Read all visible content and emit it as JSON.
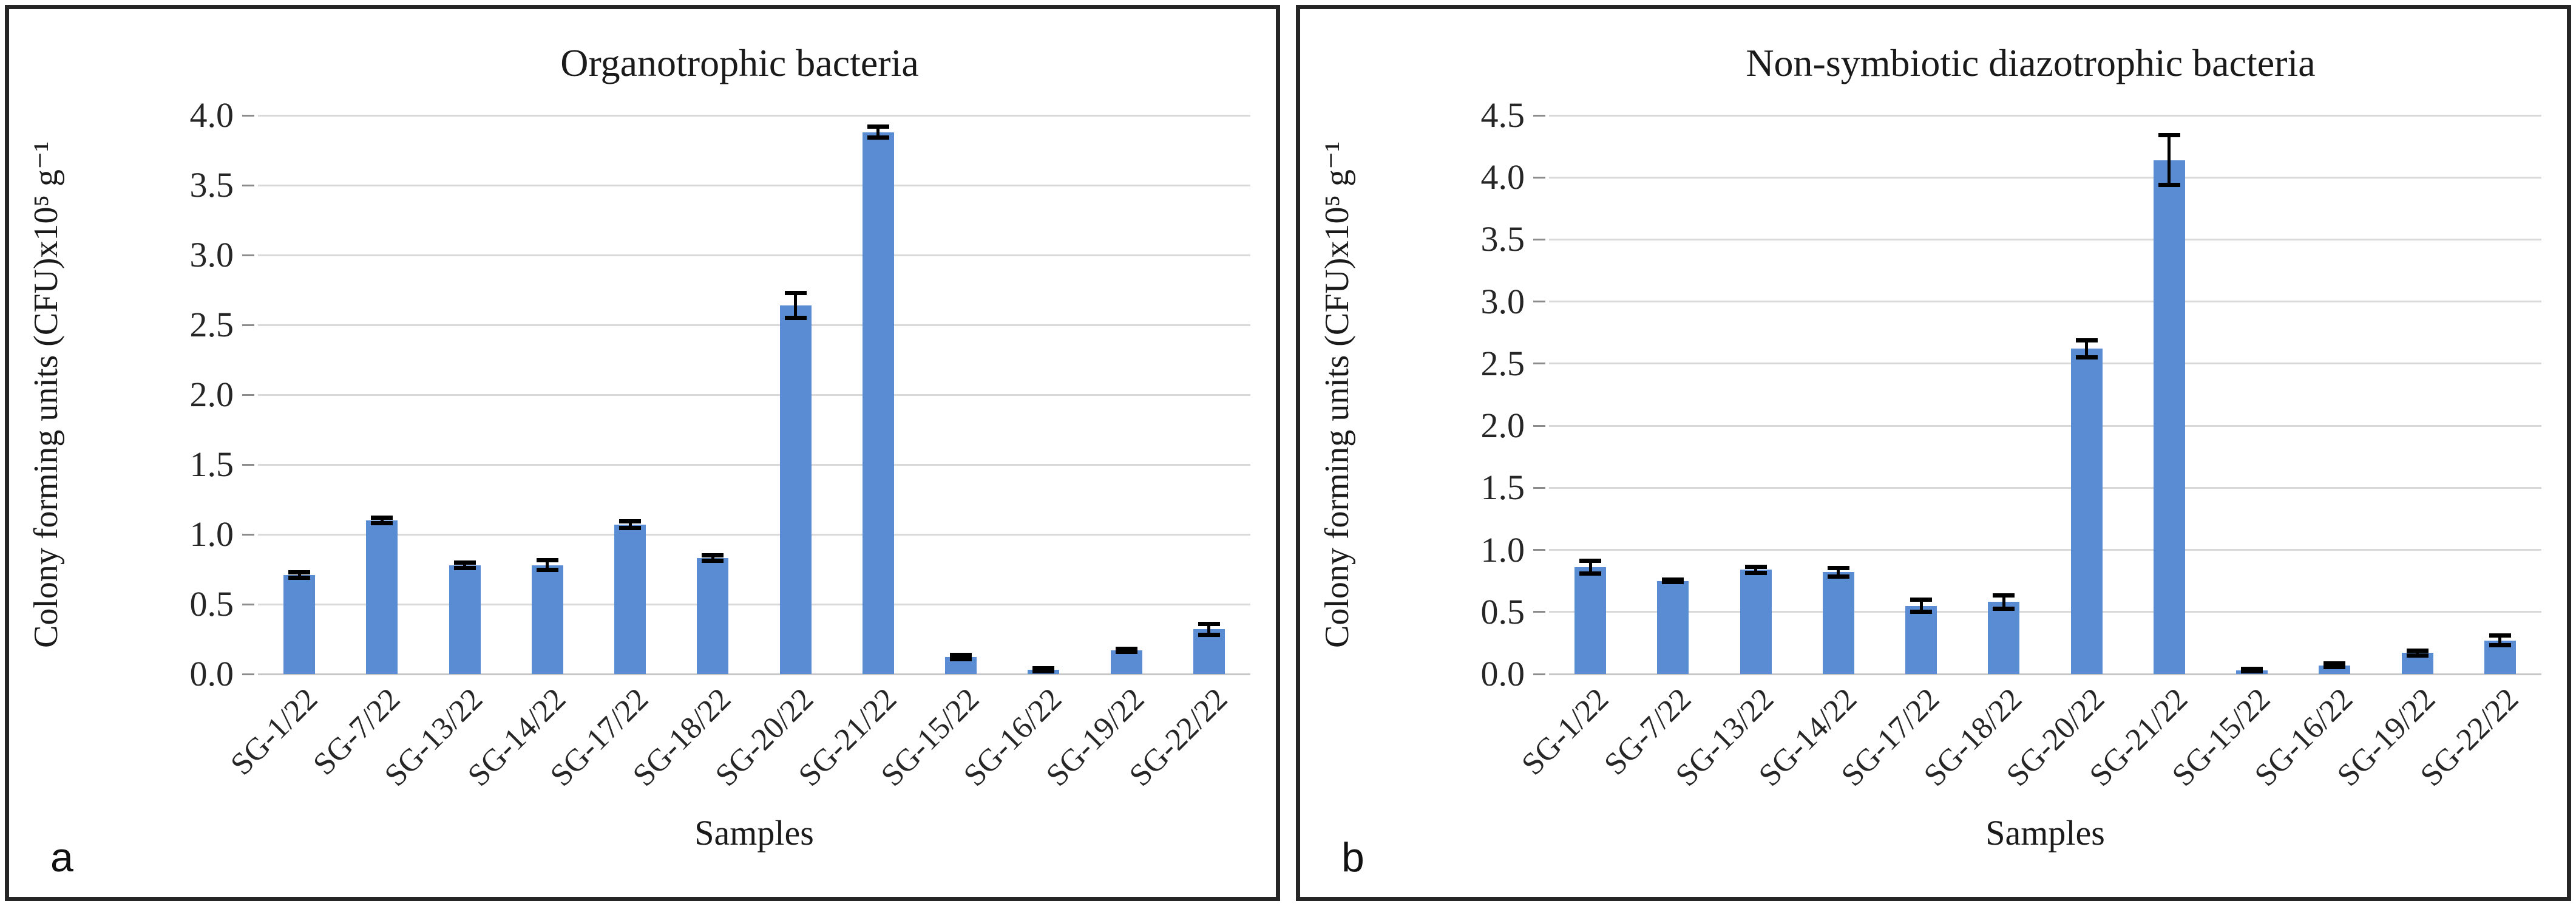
{
  "figure": {
    "description": "Two-panel bar chart figure with error bars",
    "background": "#ffffff",
    "border_color": "#262626"
  },
  "chart_data": [
    {
      "type": "bar",
      "panel_label": "a",
      "title": "Organotrophic bacteria",
      "xlabel": "Samples",
      "ylabel": "Colony forming units (CFU)x10⁵ g⁻¹",
      "categories": [
        "SG-1/22",
        "SG-7/22",
        "SG-13/22",
        "SG-14/22",
        "SG-17/22",
        "SG-18/22",
        "SG-20/22",
        "SG-21/22",
        "SG-15/22",
        "SG-16/22",
        "SG-19/22",
        "SG-22/22"
      ],
      "values": [
        0.71,
        1.1,
        0.78,
        0.78,
        1.07,
        0.83,
        2.64,
        3.88,
        0.12,
        0.03,
        0.17,
        0.32
      ],
      "errors": [
        0.02,
        0.02,
        0.02,
        0.035,
        0.025,
        0.02,
        0.09,
        0.04,
        0.015,
        0.01,
        0.01,
        0.04
      ],
      "ylim": [
        0,
        4.0
      ],
      "yticks": [
        "0.0",
        "0.5",
        "1.0",
        "1.5",
        "2.0",
        "2.5",
        "3.0",
        "3.5",
        "4.0"
      ],
      "grid": true,
      "legend": "none",
      "bar_color": "#5a8cd4",
      "gridline_color": "#d9d9d9",
      "error_color": "#000000"
    },
    {
      "type": "bar",
      "panel_label": "b",
      "title": "Non-symbiotic diazotrophic bacteria",
      "xlabel": "Samples",
      "ylabel": "Colony forming units (CFU)x10⁵ g⁻¹",
      "categories": [
        "SG-1/22",
        "SG-7/22",
        "SG-13/22",
        "SG-14/22",
        "SG-17/22",
        "SG-18/22",
        "SG-20/22",
        "SG-21/22",
        "SG-15/22",
        "SG-16/22",
        "SG-19/22",
        "SG-22/22"
      ],
      "values": [
        0.86,
        0.75,
        0.84,
        0.82,
        0.55,
        0.58,
        2.62,
        4.14,
        0.03,
        0.07,
        0.17,
        0.27
      ],
      "errors": [
        0.05,
        0.01,
        0.025,
        0.035,
        0.05,
        0.055,
        0.07,
        0.2,
        0.01,
        0.015,
        0.02,
        0.04
      ],
      "ylim": [
        0,
        4.5
      ],
      "yticks": [
        "0.0",
        "0.5",
        "1.0",
        "1.5",
        "2.0",
        "2.5",
        "3.0",
        "3.5",
        "4.0",
        "4.5"
      ],
      "grid": true,
      "legend": "none",
      "bar_color": "#5a8cd4",
      "gridline_color": "#d9d9d9",
      "error_color": "#000000"
    }
  ]
}
